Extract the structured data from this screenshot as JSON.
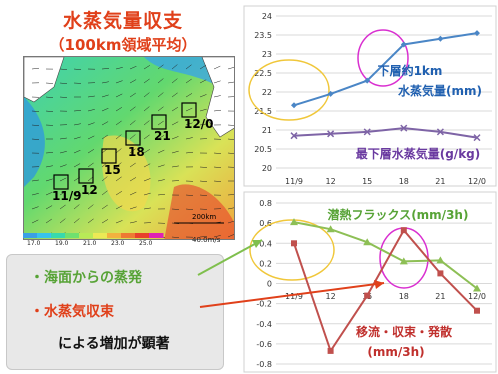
{
  "title": "水蒸気量収支",
  "subtitle": "（100km領域平均）",
  "map": {
    "box_labels": [
      "11/9",
      "12",
      "15",
      "18",
      "21",
      "12/0"
    ],
    "scale_km": "200km",
    "vector_scale": "40.0m/s",
    "colorbar_ticks": [
      "17.0",
      "19.0",
      "21.0",
      "23.0",
      "25.0"
    ],
    "colorbar_colors": [
      "#3aa0e6",
      "#38c3ee",
      "#38d9ad",
      "#6fe06f",
      "#b8ea57",
      "#ece955",
      "#f2b23f",
      "#ee7a33",
      "#e8412b",
      "#e022b4"
    ]
  },
  "notes": {
    "bullet1": "・海面からの蒸発",
    "bullet2": "・水蒸気収束",
    "line3": "による増加が顕著"
  },
  "chart_data": [
    {
      "type": "line",
      "categories": [
        "11/9",
        "12",
        "15",
        "18",
        "21",
        "12/0"
      ],
      "ylim": [
        20,
        24
      ],
      "yticks": [
        "20",
        "20.5",
        "21",
        "21.5",
        "22",
        "22.5",
        "23",
        "23.5",
        "24"
      ],
      "grid": true,
      "series": [
        {
          "name": "下層約1km 水蒸気量(mm)",
          "values": [
            21.65,
            21.95,
            22.3,
            23.25,
            23.4,
            23.55
          ],
          "color": "#4a86c6"
        },
        {
          "name": "最下層水蒸気量(g/kg)",
          "values": [
            20.85,
            20.9,
            20.95,
            21.05,
            20.95,
            20.8
          ],
          "color": "#7e64a6"
        }
      ],
      "annotations": {
        "series1_line1": "下層約1km",
        "series1_line2": "水蒸気量(mm)",
        "series2": "最下層水蒸気量(g/kg)"
      }
    },
    {
      "type": "line",
      "categories": [
        "11/9",
        "12",
        "15",
        "18",
        "21",
        "12/0"
      ],
      "ylim": [
        -0.8,
        0.8
      ],
      "yticks": [
        "0.8",
        "0.6",
        "0.4",
        "0.2",
        "0",
        "-0.2",
        "-0.4",
        "-0.6",
        "-0.8"
      ],
      "grid": true,
      "series": [
        {
          "name": "潜熱フラックス(mm/3h)",
          "values": [
            0.61,
            0.54,
            0.41,
            0.22,
            0.23,
            -0.05
          ],
          "color": "#8dbf55"
        },
        {
          "name": "移流・収束・発散 (mm/3h)",
          "values": [
            0.4,
            -0.67,
            -0.12,
            0.53,
            0.1,
            -0.27
          ],
          "color": "#c0504d"
        }
      ],
      "annotations": {
        "series1": "潜熱フラックス(mm/3h)",
        "series2_line1": "移流・収束・発散",
        "series2_line2": "(mm/3h)"
      }
    }
  ]
}
